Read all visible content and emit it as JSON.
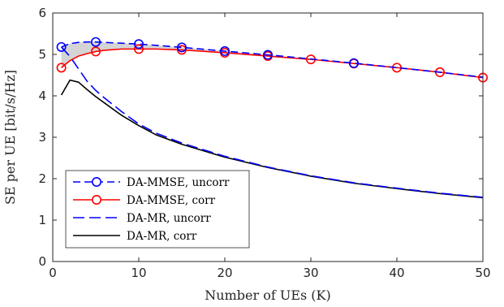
{
  "chart_data": {
    "type": "line",
    "xlabel": "Number of UEs (K)",
    "ylabel": "SE per UE [bit/s/Hz]",
    "xlim": [
      0,
      50
    ],
    "ylim": [
      0,
      6
    ],
    "xticks": [
      "0",
      "10",
      "20",
      "30",
      "40",
      "50"
    ],
    "yticks": [
      "0",
      "1",
      "2",
      "3",
      "4",
      "5",
      "6"
    ],
    "grid": false,
    "legend_position": "bottom-left",
    "shaded_region": "between DA-MMSE, uncorr and DA-MR, uncorr (top) and DA-MMSE, corr and DA-MR, corr (bottom), light gray",
    "series": [
      {
        "name": "DA-MMSE, uncorr",
        "color": "#0000ff",
        "style": "dashed",
        "marker": "circle",
        "x": [
          1,
          2,
          3,
          4,
          5,
          6,
          8,
          10,
          12,
          15,
          20,
          25,
          30,
          35,
          40,
          45,
          50
        ],
        "y": [
          5.18,
          5.26,
          5.29,
          5.3,
          5.3,
          5.29,
          5.27,
          5.25,
          5.22,
          5.17,
          5.08,
          4.99,
          4.89,
          4.79,
          4.68,
          4.57,
          4.45
        ],
        "marker_x": [
          1,
          5,
          10,
          15,
          20,
          25,
          35
        ]
      },
      {
        "name": "DA-MMSE, corr",
        "color": "#ff0000",
        "style": "solid",
        "marker": "circle",
        "x": [
          1,
          2,
          3,
          4,
          5,
          6,
          8,
          10,
          12,
          15,
          20,
          25,
          30,
          35,
          40,
          45,
          50
        ],
        "y": [
          4.68,
          4.85,
          4.96,
          5.02,
          5.07,
          5.1,
          5.13,
          5.13,
          5.13,
          5.11,
          5.04,
          4.96,
          4.88,
          4.78,
          4.68,
          4.57,
          4.44
        ],
        "marker_x": [
          1,
          5,
          10,
          15,
          20,
          25,
          30,
          35,
          40,
          45,
          50
        ]
      },
      {
        "name": "DA-MR, uncorr",
        "color": "#0000ff",
        "style": "long-dashed",
        "marker": "none",
        "x": [
          1,
          2,
          3,
          4,
          5,
          6,
          8,
          10,
          12,
          15,
          20,
          25,
          30,
          35,
          40,
          45,
          50
        ],
        "y": [
          5.18,
          4.95,
          4.65,
          4.35,
          4.13,
          3.95,
          3.62,
          3.32,
          3.1,
          2.86,
          2.54,
          2.28,
          2.07,
          1.9,
          1.77,
          1.65,
          1.55
        ],
        "marker_x": []
      },
      {
        "name": "DA-MR, corr",
        "color": "#000000",
        "style": "solid",
        "marker": "none",
        "x": [
          1,
          2,
          3,
          4,
          5,
          6,
          8,
          10,
          12,
          15,
          20,
          25,
          30,
          35,
          40,
          45,
          50
        ],
        "y": [
          4.02,
          4.38,
          4.33,
          4.15,
          3.98,
          3.83,
          3.53,
          3.28,
          3.06,
          2.83,
          2.52,
          2.27,
          2.06,
          1.89,
          1.76,
          1.64,
          1.54
        ],
        "marker_x": []
      }
    ]
  }
}
